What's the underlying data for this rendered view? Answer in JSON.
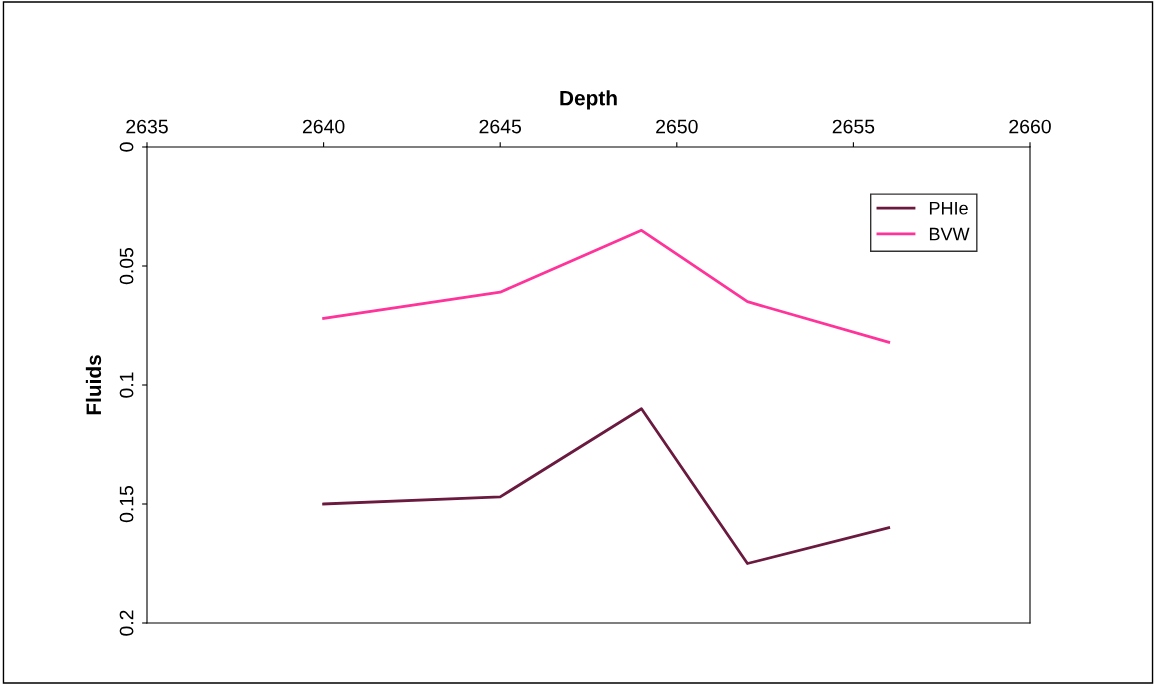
{
  "chart_data": {
    "type": "line",
    "xlabel": "Depth",
    "ylabel": "Fluids",
    "xlim": [
      2635,
      2660
    ],
    "xticks": [
      2635,
      2640,
      2645,
      2650,
      2655,
      2660
    ],
    "ylim": [
      0.2,
      0
    ],
    "yticks": [
      0,
      0.05,
      0.1,
      0.15,
      0.2
    ],
    "x": [
      2640,
      2645,
      2649,
      2652,
      2656
    ],
    "series": [
      {
        "name": "PHIe",
        "color": "#6b1a3f",
        "values": [
          0.15,
          0.147,
          0.11,
          0.175,
          0.16
        ]
      },
      {
        "name": "BVW",
        "color": "#ff3399",
        "values": [
          0.072,
          0.061,
          0.035,
          0.065,
          0.082
        ]
      }
    ],
    "legend": "top right",
    "grid": false,
    "marker": "none",
    "line_style": "solid"
  }
}
